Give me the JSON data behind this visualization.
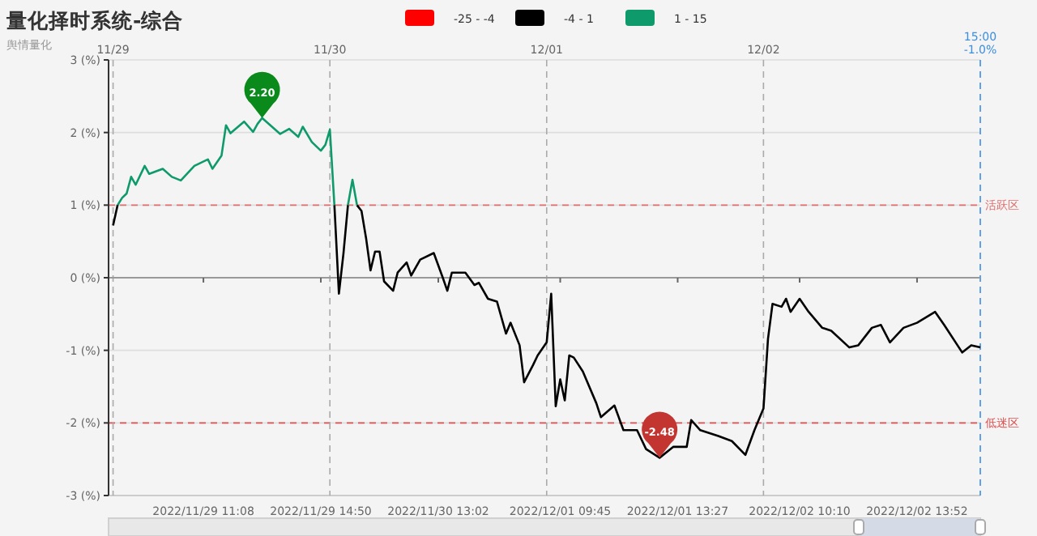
{
  "chart_data": {
    "type": "line",
    "title": "量化择时系统-综合",
    "subtitle": "舆情量化",
    "legend": "top",
    "grid": "y",
    "ylim": [
      -3,
      3
    ],
    "categories": [
      null,
      null,
      null,
      null,
      null,
      null,
      null,
      null,
      null,
      null,
      null,
      null,
      null,
      null,
      null,
      null,
      null,
      null,
      null,
      null,
      "2022/11/29 11:08",
      null,
      null,
      null,
      null,
      null,
      null,
      null,
      null,
      null,
      null,
      null,
      null,
      null,
      null,
      null,
      null,
      null,
      null,
      null,
      null,
      null,
      null,
      null,
      null,
      null,
      "2022/11/29 14:50",
      null,
      null,
      null,
      null,
      null,
      null,
      null,
      null,
      null,
      null,
      null,
      null,
      null,
      null,
      null,
      null,
      null,
      null,
      null,
      null,
      null,
      null,
      null,
      null,
      null,
      "2022/11/30 13:02",
      null,
      null,
      null,
      null,
      null,
      null,
      null,
      null,
      null,
      null,
      null,
      null,
      null,
      null,
      null,
      null,
      null,
      null,
      null,
      null,
      null,
      null,
      null,
      null,
      null,
      null,
      "2022/12/01 09:45",
      null,
      null,
      null,
      null,
      null,
      null,
      null,
      null,
      null,
      null,
      null,
      null,
      null,
      null,
      null,
      null,
      null,
      null,
      null,
      null,
      null,
      null,
      null,
      null,
      null,
      "2022/12/01 13:27",
      null,
      null,
      null,
      null,
      null,
      null,
      null,
      null,
      null,
      null,
      null,
      null,
      null,
      null,
      null,
      null,
      null,
      null,
      null,
      null,
      null,
      null,
      null,
      null,
      null,
      null,
      "2022/12/02 10:10",
      null,
      null,
      null,
      null,
      null,
      null,
      null,
      null,
      null,
      null,
      null,
      null,
      null,
      null,
      null,
      null,
      null,
      null,
      null,
      null,
      null,
      null,
      null,
      null,
      null,
      "2022/12/02 13:52",
      null,
      null,
      null,
      null,
      null,
      null,
      null,
      null,
      null,
      null,
      null,
      null,
      null,
      null
    ],
    "yticks": [
      {
        "value": -3,
        "label": "-3 (%)"
      },
      {
        "value": -2,
        "label": "-2 (%)"
      },
      {
        "value": -1,
        "label": "-1 (%)"
      },
      {
        "value": 0,
        "label": "0 (%)"
      },
      {
        "value": 1,
        "label": "1 (%)"
      },
      {
        "value": 2,
        "label": "2 (%)"
      },
      {
        "value": 3,
        "label": "3 (%)"
      }
    ],
    "x2lim": [
      "2022-11-28T23:30",
      "2022-12-03"
    ],
    "x2ticks": [
      {
        "value": "2022-11-29",
        "label": "11/29"
      },
      {
        "value": "2022-11-30",
        "label": "11/30"
      },
      {
        "value": "2022-12-01",
        "label": "12/01"
      },
      {
        "value": "2022-12-02",
        "label": "12/02"
      }
    ],
    "series": [
      {
        "name": "-25 - -4",
        "color": "#ff0000",
        "values": [
          null,
          null,
          null,
          null,
          null,
          null,
          null,
          null,
          null,
          null,
          null,
          null,
          null,
          null,
          null,
          null,
          null,
          null,
          null,
          null,
          null,
          null,
          null,
          null,
          null,
          null,
          null,
          null,
          null,
          null,
          null,
          null,
          null,
          null,
          null,
          null,
          null,
          null,
          null,
          null,
          null,
          null,
          null,
          null,
          null,
          null,
          null,
          null,
          null,
          null,
          null,
          null,
          null,
          null,
          null,
          null,
          null,
          null,
          null,
          null,
          null,
          null,
          null,
          null,
          null,
          null,
          null,
          null,
          null,
          null,
          null,
          null,
          null,
          null,
          null,
          null,
          null,
          null,
          null,
          null,
          null,
          null,
          null,
          null,
          null,
          null,
          null,
          null,
          null,
          null,
          null,
          null,
          null,
          null,
          null,
          null,
          null,
          null,
          null,
          null,
          null,
          null,
          null,
          null,
          null,
          null,
          null,
          null,
          null,
          null,
          null,
          null,
          null,
          null,
          null,
          null,
          null,
          null,
          null,
          null,
          null,
          null,
          null,
          null,
          null,
          null,
          null,
          null,
          null,
          null,
          null,
          null,
          null,
          null,
          null,
          null,
          null,
          null,
          null,
          null,
          null,
          null,
          null,
          null,
          null,
          null,
          null,
          null,
          null,
          null,
          null,
          null,
          null,
          null,
          null,
          null,
          null,
          null,
          null,
          null,
          null,
          null,
          null,
          null,
          null,
          null,
          null,
          null,
          null,
          null,
          null,
          null,
          null,
          null,
          null,
          null,
          null,
          null,
          null,
          null,
          null,
          null,
          null,
          null,
          null,
          null,
          null,
          null,
          null,
          null,
          null,
          null,
          null
        ]
      },
      {
        "name": "-4 - 1",
        "color": "#000000",
        "values": [
          null,
          null,
          null,
          null,
          null,
          null,
          null,
          null,
          null,
          null,
          null,
          null,
          null,
          null,
          null,
          null,
          null,
          null,
          null,
          null,
          null,
          null,
          null,
          null,
          null,
          null,
          null,
          null,
          null,
          null,
          null,
          null,
          null,
          null,
          null,
          null,
          null,
          null,
          null,
          null,
          null,
          null,
          null,
          null,
          null,
          null,
          null,
          null,
          null,
          null,
          null,
          null,
          null,
          null,
          1.0,
          0.92,
          0.55,
          0.1,
          0.36,
          0.36,
          -0.05,
          null,
          -0.18,
          0.07,
          null,
          0.21,
          0.03,
          null,
          0.25,
          null,
          null,
          0.34,
          null,
          0.0,
          -0.18,
          0.07,
          null,
          null,
          0.07,
          null,
          -0.1,
          -0.07,
          null,
          -0.29,
          null,
          -0.33,
          null,
          -0.77,
          -0.62,
          null,
          -0.93,
          -1.44,
          null,
          -1.2,
          -1.07,
          null,
          -0.89,
          -0.22,
          -1.77,
          -1.4,
          -1.69,
          -1.07,
          -1.1,
          null,
          -1.29,
          null,
          null,
          -1.73,
          -1.92,
          null,
          null,
          -1.76,
          null,
          -2.1,
          null,
          null,
          -2.1,
          null,
          -2.36,
          null,
          null,
          -2.48,
          null,
          null,
          -2.33,
          null,
          null,
          -2.33,
          -1.96,
          null,
          -2.1,
          null,
          null,
          null,
          -2.18,
          null,
          null,
          -2.25,
          null,
          null,
          -2.44,
          null,
          -2.1,
          null,
          -1.8,
          -0.84,
          -0.36,
          null,
          -0.4,
          -0.29,
          -0.47,
          null,
          -0.29,
          null,
          -0.47,
          null,
          null,
          -0.69,
          null,
          -0.73,
          null,
          null,
          null,
          -0.96,
          null,
          -0.93,
          null,
          null,
          -0.69,
          null,
          -0.65,
          null,
          -0.89,
          null,
          null,
          -0.69,
          null,
          null,
          -0.62,
          null,
          null,
          null,
          -0.47,
          null,
          -0.65,
          null,
          null,
          null,
          -1.03,
          null,
          -0.93,
          null,
          -0.96
        ]
      },
      {
        "name": "1 - 15",
        "color": "#0e9a6a",
        "values": [
          null,
          1.0,
          1.1,
          1.16,
          1.39,
          1.28,
          null,
          1.54,
          1.43,
          null,
          null,
          1.5,
          null,
          1.39,
          null,
          1.34,
          null,
          null,
          1.54,
          null,
          null,
          1.63,
          1.5,
          null,
          1.68,
          2.1,
          1.99,
          null,
          null,
          2.15,
          null,
          2.01,
          2.12,
          2.2,
          null,
          null,
          null,
          1.98,
          null,
          2.05,
          null,
          1.94,
          2.08,
          null,
          1.87,
          null,
          1.75,
          1.83,
          2.04,
          1.0,
          null,
          null,
          null,
          null,
          null,
          null,
          null,
          null,
          null,
          null,
          null,
          null,
          null,
          null,
          null,
          null,
          null,
          null,
          null,
          null,
          null,
          null,
          null,
          null,
          null,
          null,
          null,
          null,
          null,
          null,
          null,
          null,
          null,
          null,
          null,
          null,
          null,
          null,
          null,
          null,
          null,
          null,
          null,
          null,
          null,
          null,
          null,
          null,
          null,
          null,
          null,
          null,
          null,
          null,
          null,
          null,
          null,
          null,
          null,
          null,
          null,
          null,
          null,
          null,
          null,
          null,
          null,
          null,
          null,
          null,
          null,
          null,
          null,
          null,
          null,
          null,
          null,
          null,
          null,
          null,
          null,
          null,
          null,
          null,
          null,
          null,
          null,
          null,
          null,
          null,
          null,
          null,
          null,
          null,
          null,
          null,
          null,
          null,
          null,
          null,
          null,
          null,
          null,
          null,
          null,
          null,
          null,
          null,
          null,
          null,
          null,
          null,
          null,
          null,
          null,
          null,
          null,
          null,
          null,
          null,
          null,
          null,
          null,
          null,
          null,
          null,
          null,
          null,
          null,
          null,
          null,
          null,
          null,
          null,
          null,
          null,
          null,
          null,
          null,
          null,
          null,
          null,
          null
        ]
      },
      {
        "color": "#000000",
        "values": [
          0.72,
          1.0,
          null,
          null,
          null,
          null,
          null,
          null,
          null,
          null,
          null,
          null,
          null,
          null,
          null,
          null,
          null,
          null,
          null,
          null,
          null,
          null,
          null,
          null,
          null,
          null,
          null,
          null,
          null,
          null,
          null,
          null,
          null,
          null,
          null,
          null,
          null,
          null,
          null,
          null,
          null,
          null,
          null,
          null,
          null,
          null,
          null,
          null,
          null,
          null,
          null,
          null,
          null,
          null,
          null,
          null,
          null,
          null,
          null,
          null,
          null,
          null,
          null,
          null,
          null,
          null,
          null,
          null,
          null,
          null,
          null,
          null,
          null,
          null,
          null,
          null,
          null,
          null,
          null,
          null,
          null,
          null,
          null,
          null,
          null,
          null,
          null,
          null,
          null,
          null,
          null,
          null,
          null,
          null,
          null,
          null,
          null,
          null,
          null,
          null,
          null,
          null,
          null,
          null,
          null,
          null,
          null,
          null,
          null,
          null,
          null,
          null,
          null,
          null,
          null,
          null,
          null,
          null,
          null,
          null,
          null,
          null,
          null,
          null,
          null,
          null,
          null,
          null,
          null,
          null,
          null,
          null,
          null,
          null,
          null,
          null,
          null,
          null,
          null,
          null,
          null,
          null,
          null,
          null,
          null,
          null,
          null,
          null,
          null,
          null,
          null,
          null,
          null,
          null,
          null,
          null,
          null,
          null,
          null,
          null,
          null,
          null,
          null,
          null,
          null,
          null,
          null,
          null,
          null,
          null,
          null,
          null,
          null,
          null,
          null,
          null,
          null,
          null,
          null,
          null,
          null,
          null,
          null,
          null,
          null,
          null,
          null,
          null,
          null,
          null,
          null,
          null,
          null
        ]
      },
      {
        "color": "#000000",
        "values": [
          null,
          null,
          null,
          null,
          null,
          null,
          null,
          null,
          null,
          null,
          null,
          null,
          null,
          null,
          null,
          null,
          null,
          null,
          null,
          null,
          null,
          null,
          null,
          null,
          null,
          null,
          null,
          null,
          null,
          null,
          null,
          null,
          null,
          null,
          null,
          null,
          null,
          null,
          null,
          null,
          null,
          null,
          null,
          null,
          null,
          null,
          null,
          null,
          null,
          1.0,
          -0.22,
          0.33,
          1.0,
          null,
          null,
          null,
          null,
          null,
          null,
          null,
          null,
          null,
          null,
          null,
          null,
          null,
          null,
          null,
          null,
          null,
          null,
          null,
          null,
          null,
          null,
          null,
          null,
          null,
          null,
          null,
          null,
          null,
          null,
          null,
          null,
          null,
          null,
          null,
          null,
          null,
          null,
          null,
          null,
          null,
          null,
          null,
          null,
          null,
          null,
          null,
          null,
          null,
          null,
          null,
          null,
          null,
          null,
          null,
          null,
          null,
          null,
          null,
          null,
          null,
          null,
          null,
          null,
          null,
          null,
          null,
          null,
          null,
          null,
          null,
          null,
          null,
          null,
          null,
          null,
          null,
          null,
          null,
          null,
          null,
          null,
          null,
          null,
          null,
          null,
          null,
          null,
          null,
          null,
          null,
          null,
          null,
          null,
          null,
          null,
          null,
          null,
          null,
          null,
          null,
          null,
          null,
          null,
          null,
          null,
          null,
          null,
          null,
          null,
          null,
          null,
          null,
          null,
          null,
          null,
          null,
          null,
          null,
          null,
          null,
          null,
          null,
          null,
          null,
          null,
          null,
          null,
          null,
          null,
          null,
          null,
          null,
          null,
          null,
          null,
          null,
          null,
          null,
          null
        ]
      },
      {
        "color": "#0e9a6a",
        "values": [
          null,
          null,
          null,
          null,
          null,
          null,
          null,
          null,
          null,
          null,
          null,
          null,
          null,
          null,
          null,
          null,
          null,
          null,
          null,
          null,
          null,
          null,
          null,
          null,
          null,
          null,
          null,
          null,
          null,
          null,
          null,
          null,
          null,
          null,
          null,
          null,
          null,
          null,
          null,
          null,
          null,
          null,
          null,
          null,
          null,
          null,
          null,
          null,
          null,
          null,
          null,
          null,
          1.0,
          1.35,
          1.0,
          null,
          null,
          null,
          null,
          null,
          null,
          null,
          null,
          null,
          null,
          null,
          null,
          null,
          null,
          null,
          null,
          null,
          null,
          null,
          null,
          null,
          null,
          null,
          null,
          null,
          null,
          null,
          null,
          null,
          null,
          null,
          null,
          null,
          null,
          null,
          null,
          null,
          null,
          null,
          null,
          null,
          null,
          null,
          null,
          null,
          null,
          null,
          null,
          null,
          null,
          null,
          null,
          null,
          null,
          null,
          null,
          null,
          null,
          null,
          null,
          null,
          null,
          null,
          null,
          null,
          null,
          null,
          null,
          null,
          null,
          null,
          null,
          null,
          null,
          null,
          null,
          null,
          null,
          null,
          null,
          null,
          null,
          null,
          null,
          null,
          null,
          null,
          null,
          null,
          null,
          null,
          null,
          null,
          null,
          null,
          null,
          null,
          null,
          null,
          null,
          null,
          null,
          null,
          null,
          null,
          null,
          null,
          null,
          null,
          null,
          null,
          null,
          null,
          null,
          null,
          null,
          null,
          null,
          null,
          null,
          null,
          null,
          null,
          null,
          null,
          null,
          null,
          null,
          null,
          null,
          null,
          null,
          null,
          null,
          null,
          null,
          null,
          null
        ]
      }
    ],
    "ref_lines": [
      {
        "axis": "y",
        "value": 1,
        "label": "活跃区",
        "color": "#e07070",
        "line_style": "dashed"
      },
      {
        "axis": "y",
        "value": -2,
        "label": "低迷区",
        "color": "#e05050",
        "line_style": "dashed"
      },
      {
        "axis": "x2",
        "value": "2022-11-29",
        "color": "#aaaaaa",
        "line_style": "dashed"
      },
      {
        "axis": "x2",
        "value": "2022-11-30",
        "color": "#aaaaaa",
        "line_style": "dashed"
      },
      {
        "axis": "x2",
        "value": "2022-12-01",
        "color": "#aaaaaa",
        "line_style": "dashed"
      },
      {
        "axis": "x2",
        "value": "2022-12-02",
        "color": "#aaaaaa",
        "line_style": "dashed"
      },
      {
        "axis": "x2",
        "value": "2022-12-03",
        "label": "15:00\n-1.0%",
        "color": "#3c8ee0",
        "line_style": "dashed"
      }
    ],
    "annotations": [
      {
        "text": "2.20",
        "y": 2.2
      },
      {
        "text": "-2.48",
        "y": -2.48
      }
    ]
  }
}
